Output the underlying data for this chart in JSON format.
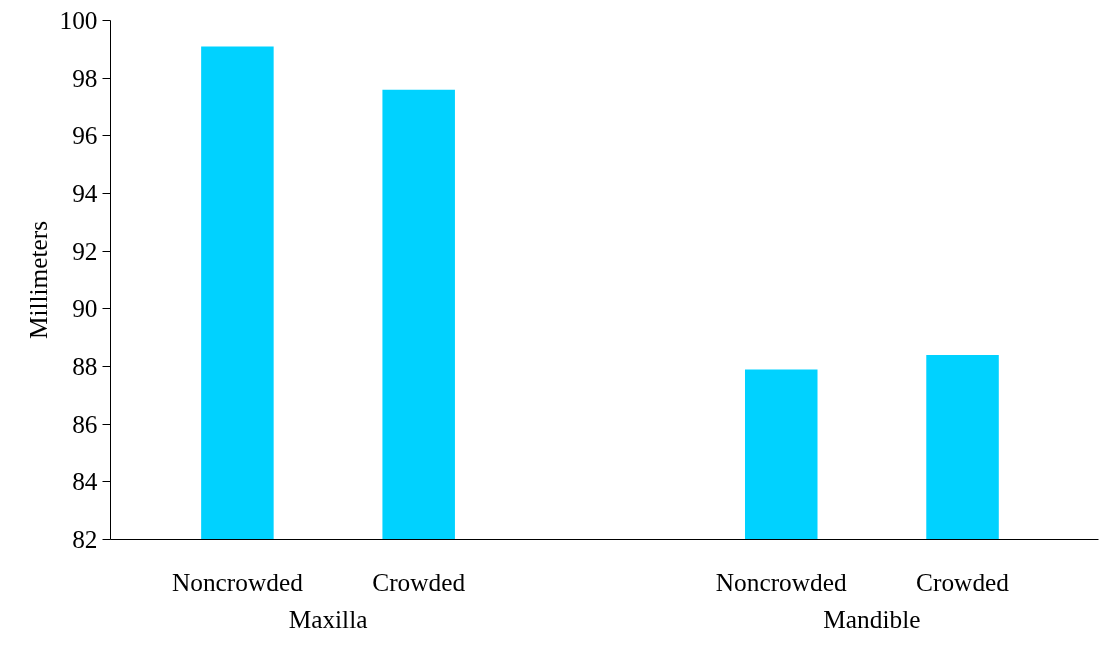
{
  "chart_data": {
    "type": "bar",
    "ylabel": "Millimeters",
    "categories": [
      "Noncrowded",
      "Crowded",
      null,
      "Noncrowded",
      "Crowded"
    ],
    "values": [
      99.1,
      97.6,
      null,
      87.9,
      88.4
    ],
    "color": "#00d2ff",
    "ylim": [
      82,
      100
    ],
    "yticks": [
      82,
      84,
      86,
      88,
      90,
      92,
      94,
      96,
      98,
      100
    ],
    "grid": false,
    "annotations": [
      "Maxilla",
      "Mandible"
    ]
  }
}
